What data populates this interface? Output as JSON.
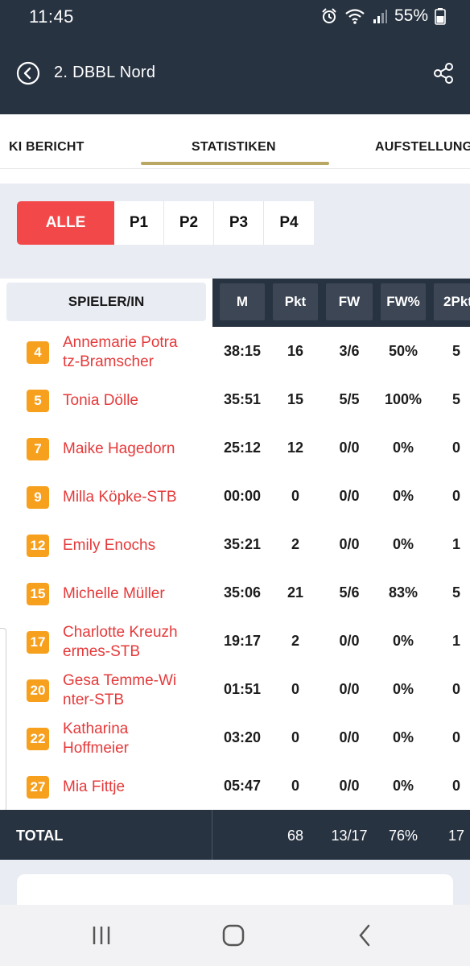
{
  "status_bar": {
    "time": "11:45",
    "battery": "55%"
  },
  "app_bar": {
    "title": "2. DBBL Nord"
  },
  "tabs": [
    {
      "label": "KI BERICHT"
    },
    {
      "label": "STATISTIKEN"
    },
    {
      "label": "AUFSTELLUNG"
    }
  ],
  "period_filter": [
    "ALLE",
    "P1",
    "P2",
    "P3",
    "P4"
  ],
  "table": {
    "player_header": "SPIELER/IN",
    "columns": [
      "M",
      "Pkt",
      "FW",
      "FW%",
      "2Pkt"
    ],
    "rows": [
      {
        "number": "4",
        "name": "Annemarie Potra tz-Bramscher",
        "line1": "Annemarie Potra",
        "line2": "tz-Bramscher",
        "m": "38:15",
        "pkt": "16",
        "fw": "3/6",
        "fwp": "50%",
        "p2": "5"
      },
      {
        "number": "5",
        "name": "Tonia Dölle",
        "line1": "Tonia Dölle",
        "line2": "",
        "m": "35:51",
        "pkt": "15",
        "fw": "5/5",
        "fwp": "100%",
        "p2": "5"
      },
      {
        "number": "7",
        "name": "Maike Hagedorn",
        "line1": "Maike Hagedorn",
        "line2": "",
        "m": "25:12",
        "pkt": "12",
        "fw": "0/0",
        "fwp": "0%",
        "p2": "0"
      },
      {
        "number": "9",
        "name": "Milla Köpke-STB",
        "line1": "Milla Köpke-STB",
        "line2": "",
        "m": "00:00",
        "pkt": "0",
        "fw": "0/0",
        "fwp": "0%",
        "p2": "0"
      },
      {
        "number": "12",
        "name": "Emily Enochs",
        "line1": "Emily Enochs",
        "line2": "",
        "m": "35:21",
        "pkt": "2",
        "fw": "0/0",
        "fwp": "0%",
        "p2": "1"
      },
      {
        "number": "15",
        "name": "Michelle Müller",
        "line1": "Michelle Müller",
        "line2": "",
        "m": "35:06",
        "pkt": "21",
        "fw": "5/6",
        "fwp": "83%",
        "p2": "5"
      },
      {
        "number": "17",
        "name": "Charlotte Kreuzh ermes-STB",
        "line1": "Charlotte Kreuzh",
        "line2": "ermes-STB",
        "m": "19:17",
        "pkt": "2",
        "fw": "0/0",
        "fwp": "0%",
        "p2": "1"
      },
      {
        "number": "20",
        "name": "Gesa Temme-Wi nter-STB",
        "line1": "Gesa Temme-Wi",
        "line2": "nter-STB",
        "m": "01:51",
        "pkt": "0",
        "fw": "0/0",
        "fwp": "0%",
        "p2": "0"
      },
      {
        "number": "22",
        "name": "Katharina Hoffmeier",
        "line1": "Katharina",
        "line2": "Hoffmeier",
        "m": "03:20",
        "pkt": "0",
        "fw": "0/0",
        "fwp": "0%",
        "p2": "0"
      },
      {
        "number": "27",
        "name": "Mia Fittje",
        "line1": "Mia Fittje",
        "line2": "",
        "m": "05:47",
        "pkt": "0",
        "fw": "0/0",
        "fwp": "0%",
        "p2": "0"
      }
    ],
    "total": {
      "label": "TOTAL",
      "m": "",
      "pkt": "68",
      "fw": "13/17",
      "fwp": "76%",
      "p2": "17"
    }
  },
  "colors": {
    "header_dark": "#283341",
    "accent_red": "#f3484a",
    "number_orange": "#f7a01d",
    "name_red": "#e5393a",
    "tab_gold": "#b8a864"
  }
}
